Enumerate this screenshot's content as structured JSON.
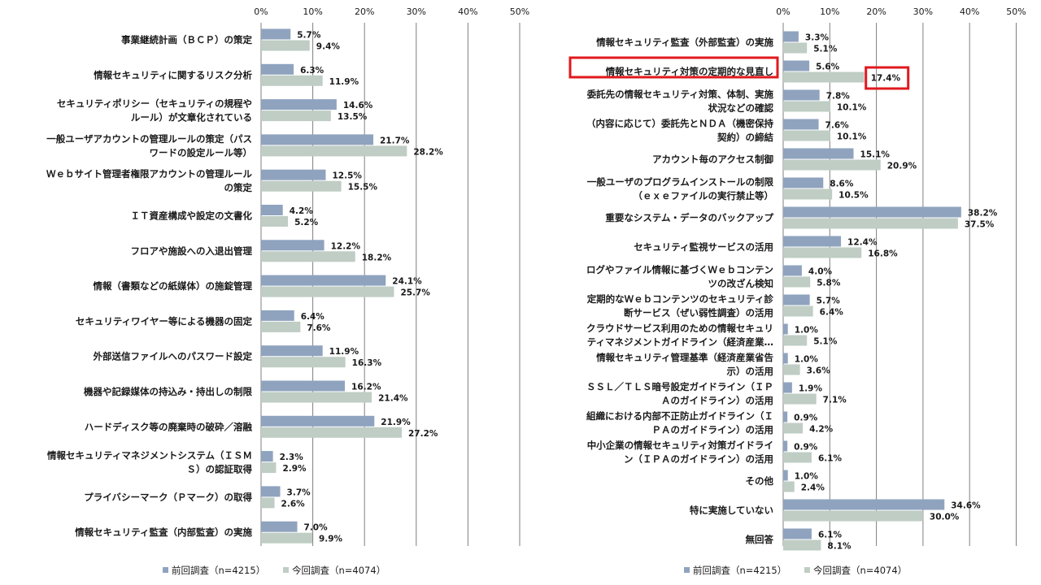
{
  "chart_data": [
    {
      "type": "bar",
      "orientation": "horizontal",
      "xlim": [
        0,
        50
      ],
      "ticks": [
        "0%",
        "10%",
        "20%",
        "30%",
        "40%",
        "50%"
      ],
      "grid": true,
      "legend_position": "bottom",
      "categories": [
        [
          "事業継続計画（ＢＣＰ）の策定"
        ],
        [
          "情報セキュリティに関するリスク分析"
        ],
        [
          "セキュリティポリシー（セキュリティの規程や",
          "ルール）が文章化されている"
        ],
        [
          "一般ユーザアカウントの管理ルールの策定（パス",
          "ワードの設定ルール等）"
        ],
        [
          "Ｗｅｂサイト管理者権限アカウントの管理ルール",
          "の策定"
        ],
        [
          "ＩＴ資産構成や設定の文書化"
        ],
        [
          "フロアや施設への入退出管理"
        ],
        [
          "情報（書類などの紙媒体）の施錠管理"
        ],
        [
          "セキュリティワイヤー等による機器の固定"
        ],
        [
          "外部送信ファイルへのパスワード設定"
        ],
        [
          "機器や記録媒体の持込み・持出しの制限"
        ],
        [
          "ハードディスク等の廃棄時の破砕／溶融"
        ],
        [
          "情報セキュリティマネジメントシステム（ＩＳＭ",
          "Ｓ）の認証取得"
        ],
        [
          "プライバシーマーク（Ｐマーク）の取得"
        ],
        [
          "情報セキュリティ監査（内部監査）の実施"
        ]
      ],
      "series": [
        {
          "name": "前回調査（n=4215）",
          "color": "#8fa3bf",
          "values": [
            5.7,
            6.3,
            14.6,
            21.7,
            12.5,
            4.2,
            12.2,
            24.1,
            6.4,
            11.9,
            16.2,
            21.9,
            2.3,
            3.7,
            7.0
          ],
          "labels": [
            "5.7%",
            "6.3%",
            "14.6%",
            "21.7%",
            "12.5%",
            "4.2%",
            "12.2%",
            "24.1%",
            "6.4%",
            "11.9%",
            "16.2%",
            "21.9%",
            "2.3%",
            "3.7%",
            "7.0%"
          ]
        },
        {
          "name": "今回調査（n=4074）",
          "color": "#bfcdc4",
          "values": [
            9.4,
            11.9,
            13.5,
            28.2,
            15.5,
            5.2,
            18.2,
            25.7,
            7.6,
            16.3,
            21.4,
            27.2,
            2.9,
            2.6,
            9.9
          ],
          "labels": [
            "9.4%",
            "11.9%",
            "13.5%",
            "28.2%",
            "15.5%",
            "5.2%",
            "18.2%",
            "25.7%",
            "7.6%",
            "16.3%",
            "21.4%",
            "27.2%",
            "2.9%",
            "2.6%",
            "9.9%"
          ]
        }
      ]
    },
    {
      "type": "bar",
      "orientation": "horizontal",
      "xlim": [
        0,
        50
      ],
      "ticks": [
        "0%",
        "10%",
        "20%",
        "30%",
        "40%",
        "50%"
      ],
      "grid": true,
      "legend_position": "bottom",
      "highlight_color": "#e0191e",
      "highlight_category": 1,
      "highlight_value": "17.4%",
      "categories": [
        [
          "情報セキュリティ監査（外部監査）の実施"
        ],
        [
          "情報セキュリティ対策の定期的な見直し"
        ],
        [
          "委託先の情報セキュリティ対策、体制、実施",
          "状況などの確認"
        ],
        [
          "（内容に応じて）委託先とＮＤＡ（機密保持",
          "契約）の締結"
        ],
        [
          "アカウント毎のアクセス制御"
        ],
        [
          "一般ユーザのプログラムインストールの制限",
          "（ｅｘｅファイルの実行禁止等）"
        ],
        [
          "重要なシステム・データのバックアップ"
        ],
        [
          "セキュリティ監視サービスの活用"
        ],
        [
          "ログやファイル情報に基づくＷｅｂコンテン",
          "ツの改ざん検知"
        ],
        [
          "定期的なＷｅｂコンテンツのセキュリティ診",
          "断サービス（ぜい弱性調査）の活用"
        ],
        [
          "クラウドサービス利用のための情報セキュリ",
          "ティマネジメントガイドライン（経済産業…"
        ],
        [
          "情報セキュリティ管理基準（経済産業省告",
          "示）の活用"
        ],
        [
          "ＳＳＬ／ＴＬＳ暗号設定ガイドライン（ＩＰ",
          "Ａのガイドライン）の活用"
        ],
        [
          "組織における内部不正防止ガイドライン（Ｉ",
          "ＰＡのガイドライン）の活用"
        ],
        [
          "中小企業の情報セキュリティ対策ガイドライ",
          "ン（ＩＰＡのガイドライン）の活用"
        ],
        [
          "その他"
        ],
        [
          "特に実施していない"
        ],
        [
          "無回答"
        ]
      ],
      "series": [
        {
          "name": "前回調査（n=4215）",
          "color": "#8fa3bf",
          "values": [
            3.3,
            5.6,
            7.8,
            7.6,
            15.1,
            8.6,
            38.2,
            12.4,
            4.0,
            5.7,
            1.0,
            1.0,
            1.9,
            0.9,
            0.9,
            1.0,
            34.6,
            6.1
          ],
          "labels": [
            "3.3%",
            "5.6%",
            "7.8%",
            "7.6%",
            "15.1%",
            "8.6%",
            "38.2%",
            "12.4%",
            "4.0%",
            "5.7%",
            "1.0%",
            "1.0%",
            "1.9%",
            "0.9%",
            "0.9%",
            "1.0%",
            "34.6%",
            "6.1%"
          ]
        },
        {
          "name": "今回調査（n=4074）",
          "color": "#bfcdc4",
          "values": [
            5.1,
            17.4,
            10.1,
            10.1,
            20.9,
            10.5,
            37.5,
            16.8,
            5.8,
            6.4,
            5.1,
            3.6,
            7.1,
            4.2,
            6.1,
            2.4,
            30.0,
            8.1
          ],
          "labels": [
            "5.1%",
            "17.4%",
            "10.1%",
            "10.1%",
            "20.9%",
            "10.5%",
            "37.5%",
            "16.8%",
            "5.8%",
            "6.4%",
            "5.1%",
            "3.6%",
            "7.1%",
            "4.2%",
            "6.1%",
            "2.4%",
            "30.0%",
            "8.1%"
          ]
        }
      ]
    }
  ]
}
